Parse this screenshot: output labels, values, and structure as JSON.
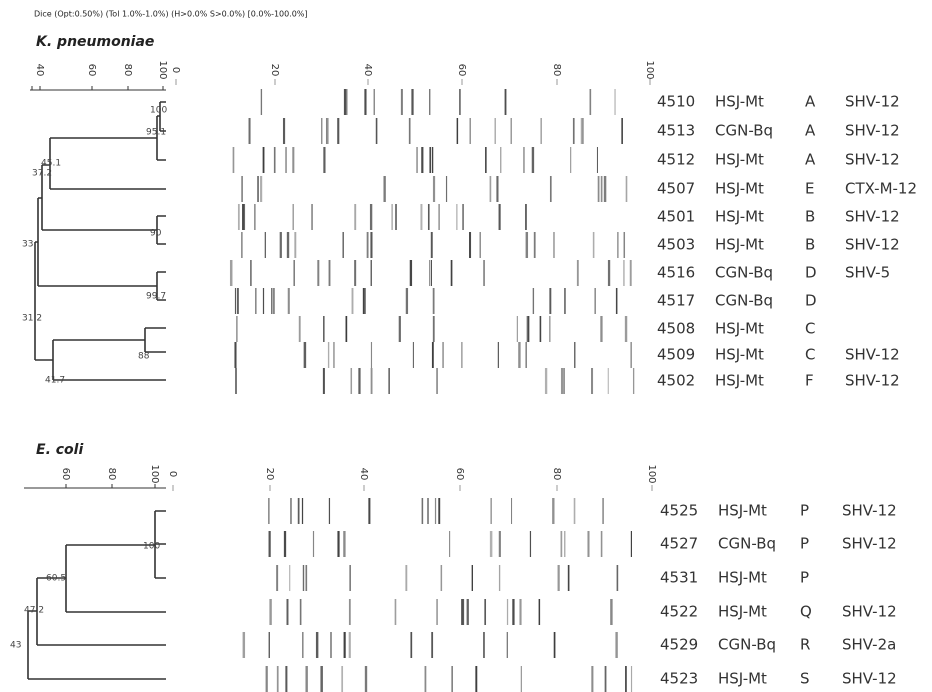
{
  "header": "Dice (Opt:0.50%) (Tol 1.0%-1.0%) (H>0.0% S>0.0%) [0.0%-100.0%]",
  "panels": [
    {
      "title": "K. pneumoniae",
      "dendrogram_ticks": [
        "40",
        "60",
        "80",
        "100"
      ],
      "gel_ticks": [
        "0",
        "20",
        "40",
        "60",
        "80",
        "100"
      ],
      "nodes": [
        "100",
        "95.1",
        "45.1",
        "37.2",
        "90",
        "33",
        "99.7",
        "31.2",
        "88",
        "41.7"
      ],
      "rows": [
        [
          "4510",
          "HSJ-Mt",
          "A",
          "SHV-12"
        ],
        [
          "4513",
          "CGN-Bq",
          "A",
          "SHV-12"
        ],
        [
          "4512",
          "HSJ-Mt",
          "A",
          "SHV-12"
        ],
        [
          "4507",
          "HSJ-Mt",
          "E",
          "CTX-M-12"
        ],
        [
          "4501",
          "HSJ-Mt",
          "B",
          "SHV-12"
        ],
        [
          "4503",
          "HSJ-Mt",
          "B",
          "SHV-12"
        ],
        [
          "4516",
          "CGN-Bq",
          "D",
          "SHV-5"
        ],
        [
          "4517",
          "CGN-Bq",
          "D"
        ],
        [
          "4508",
          "HSJ-Mt",
          "C"
        ],
        [
          "4509",
          "HSJ-Mt",
          "C",
          "SHV-12"
        ],
        [
          "4502",
          "HSJ-Mt",
          "F",
          "SHV-12"
        ]
      ]
    },
    {
      "title": "E. coli",
      "dendrogram_ticks": [
        "60",
        "80",
        "100"
      ],
      "gel_ticks": [
        "0",
        "20",
        "40",
        "60",
        "80",
        "100"
      ],
      "nodes": [
        "100",
        "60.5",
        "47.2",
        "43"
      ],
      "rows": [
        [
          "4525",
          "HSJ-Mt",
          "P",
          "SHV-12"
        ],
        [
          "4527",
          "CGN-Bq",
          "P",
          "SHV-12"
        ],
        [
          "4531",
          "HSJ-Mt",
          "P"
        ],
        [
          "4522",
          "HSJ-Mt",
          "Q",
          "SHV-12"
        ],
        [
          "4529",
          "CGN-Bq",
          "R",
          "SHV-2a"
        ],
        [
          "4523",
          "HSJ-Mt",
          "S",
          "SHV-12"
        ]
      ]
    }
  ]
}
